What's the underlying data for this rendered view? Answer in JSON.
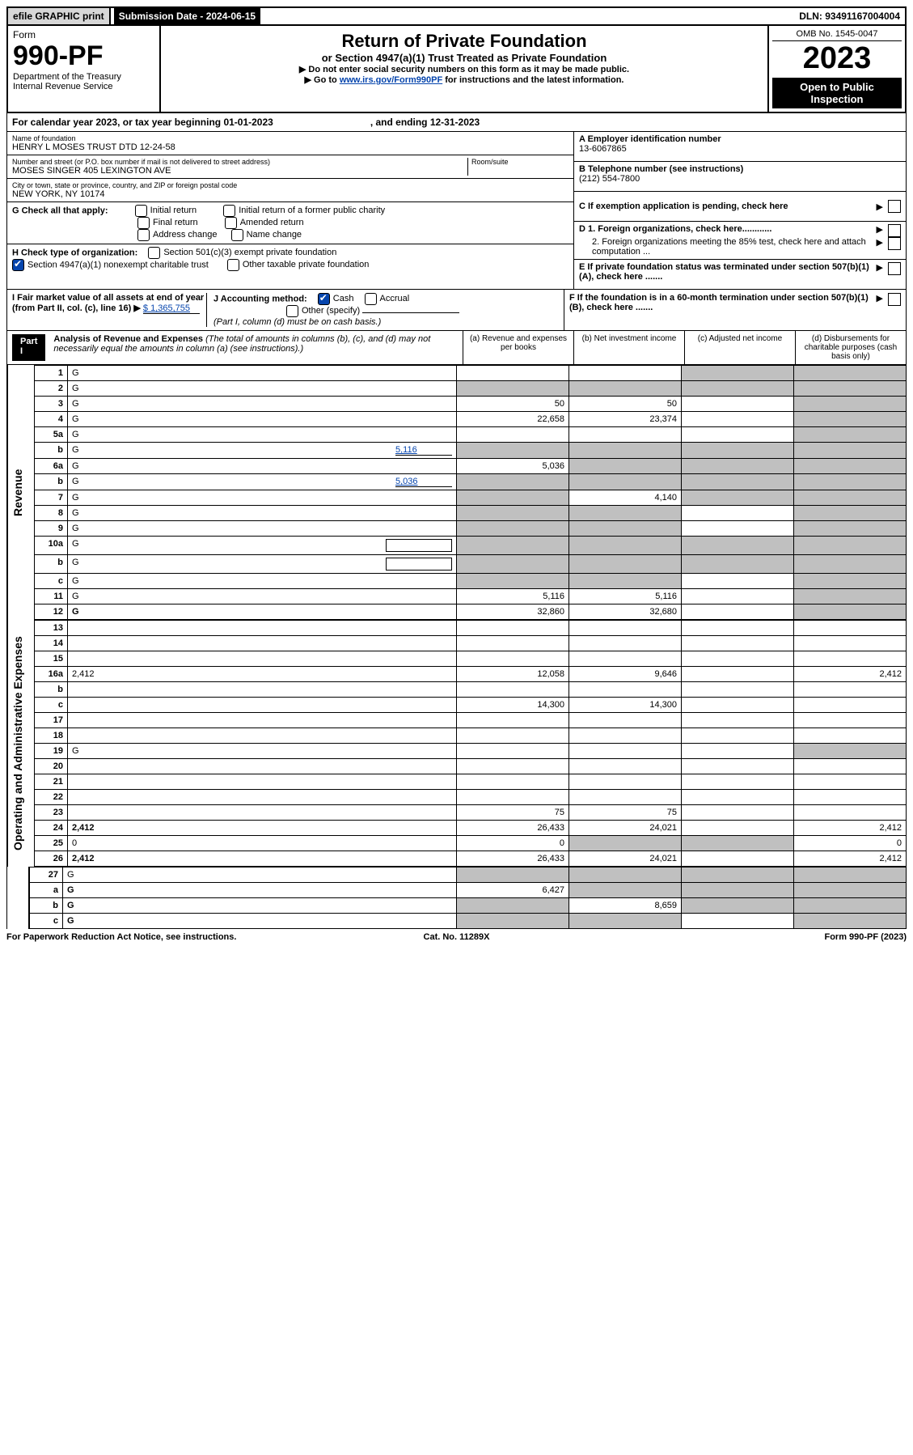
{
  "topbar": {
    "efile": "efile GRAPHIC print",
    "sub_label": "Submission Date - 2024-06-15",
    "dln": "DLN: 93491167004004"
  },
  "header": {
    "form_word": "Form",
    "form_no": "990-PF",
    "dept": "Department of the Treasury\nInternal Revenue Service",
    "title": "Return of Private Foundation",
    "subtitle": "or Section 4947(a)(1) Trust Treated as Private Foundation",
    "instr1": "▶ Do not enter social security numbers on this form as it may be made public.",
    "instr2_pre": "▶ Go to ",
    "instr2_link": "www.irs.gov/Form990PF",
    "instr2_post": " for instructions and the latest information.",
    "omb": "OMB No. 1545-0047",
    "year": "2023",
    "open": "Open to Public Inspection"
  },
  "calrow": {
    "text_a": "For calendar year 2023, or tax year beginning 01-01-2023",
    "text_b": ", and ending 12-31-2023"
  },
  "info": {
    "name_label": "Name of foundation",
    "name": "HENRY L MOSES TRUST DTD 12-24-58",
    "addr_label": "Number and street (or P.O. box number if mail is not delivered to street address)",
    "addr": "MOSES SINGER 405 LEXINGTON AVE",
    "room_label": "Room/suite",
    "city_label": "City or town, state or province, country, and ZIP or foreign postal code",
    "city": "NEW YORK, NY  10174",
    "A_label": "A Employer identification number",
    "A_val": "13-6067865",
    "B_label": "B Telephone number (see instructions)",
    "B_val": "(212) 554-7800",
    "C_label": "C If exemption application is pending, check here",
    "D1": "D 1. Foreign organizations, check here............",
    "D2": "2. Foreign organizations meeting the 85% test, check here and attach computation ...",
    "E": "E  If private foundation status was terminated under section 507(b)(1)(A), check here .......",
    "F": "F  If the foundation is in a 60-month termination under section 507(b)(1)(B), check here ......."
  },
  "G": {
    "label": "G Check all that apply:",
    "opts": [
      "Initial return",
      "Final return",
      "Address change",
      "Initial return of a former public charity",
      "Amended return",
      "Name change"
    ]
  },
  "H": {
    "label": "H Check type of organization:",
    "opt1": "Section 501(c)(3) exempt private foundation",
    "opt2": "Section 4947(a)(1) nonexempt charitable trust",
    "opt3": "Other taxable private foundation"
  },
  "I": {
    "label": "I Fair market value of all assets at end of year (from Part II, col. (c), line 16) ▶",
    "val": "$  1,365,755"
  },
  "J": {
    "label": "J Accounting method:",
    "cash": "Cash",
    "accrual": "Accrual",
    "other": "Other (specify)",
    "note": "(Part I, column (d) must be on cash basis.)"
  },
  "part1": {
    "label": "Part I",
    "title": "Analysis of Revenue and Expenses",
    "title_note": "(The total of amounts in columns (b), (c), and (d) may not necessarily equal the amounts in column (a) (see instructions).)",
    "col_a": "(a)   Revenue and expenses per books",
    "col_b": "(b)   Net investment income",
    "col_c": "(c)   Adjusted net income",
    "col_d": "(d)   Disbursements for charitable purposes (cash basis only)"
  },
  "sections": [
    {
      "side": "Revenue",
      "rows": [
        {
          "n": "1",
          "d": "G",
          "a": "",
          "b": "",
          "c": "G"
        },
        {
          "n": "2",
          "d": "G",
          "a": "G",
          "b": "G",
          "c": "G"
        },
        {
          "n": "3",
          "d": "G",
          "a": "50",
          "b": "50",
          "c": ""
        },
        {
          "n": "4",
          "d": "G",
          "a": "22,658",
          "b": "23,374",
          "c": ""
        },
        {
          "n": "5a",
          "d": "G",
          "a": "",
          "b": "",
          "c": ""
        },
        {
          "n": "b",
          "d": "G",
          "inline": "5,116",
          "a": "G",
          "b": "G",
          "c": "G"
        },
        {
          "n": "6a",
          "d": "G",
          "a": "5,036",
          "b": "G",
          "c": "G"
        },
        {
          "n": "b",
          "d": "G",
          "inline": "5,036",
          "a": "G",
          "b": "G",
          "c": "G"
        },
        {
          "n": "7",
          "d": "G",
          "a": "G",
          "b": "4,140",
          "c": "G"
        },
        {
          "n": "8",
          "d": "G",
          "a": "G",
          "b": "G",
          "c": ""
        },
        {
          "n": "9",
          "d": "G",
          "a": "G",
          "b": "G",
          "c": ""
        },
        {
          "n": "10a",
          "d": "G",
          "half": true,
          "a": "G",
          "b": "G",
          "c": "G"
        },
        {
          "n": "b",
          "d": "G",
          "half": true,
          "a": "G",
          "b": "G",
          "c": "G"
        },
        {
          "n": "c",
          "d": "G",
          "a": "G",
          "b": "G",
          "c": ""
        },
        {
          "n": "11",
          "d": "G",
          "a": "5,116",
          "b": "5,116",
          "c": ""
        },
        {
          "n": "12",
          "d": "G",
          "bold": true,
          "a": "32,860",
          "b": "32,680",
          "c": ""
        }
      ]
    },
    {
      "side": "Operating and Administrative Expenses",
      "rows": [
        {
          "n": "13",
          "d": "",
          "a": "",
          "b": "",
          "c": ""
        },
        {
          "n": "14",
          "d": "",
          "a": "",
          "b": "",
          "c": ""
        },
        {
          "n": "15",
          "d": "",
          "a": "",
          "b": "",
          "c": ""
        },
        {
          "n": "16a",
          "d": "2,412",
          "a": "12,058",
          "b": "9,646",
          "c": ""
        },
        {
          "n": "b",
          "d": "",
          "a": "",
          "b": "",
          "c": ""
        },
        {
          "n": "c",
          "d": "",
          "a": "14,300",
          "b": "14,300",
          "c": ""
        },
        {
          "n": "17",
          "d": "",
          "a": "",
          "b": "",
          "c": ""
        },
        {
          "n": "18",
          "d": "",
          "a": "",
          "b": "",
          "c": ""
        },
        {
          "n": "19",
          "d": "G",
          "a": "",
          "b": "",
          "c": ""
        },
        {
          "n": "20",
          "d": "",
          "a": "",
          "b": "",
          "c": ""
        },
        {
          "n": "21",
          "d": "",
          "a": "",
          "b": "",
          "c": ""
        },
        {
          "n": "22",
          "d": "",
          "a": "",
          "b": "",
          "c": ""
        },
        {
          "n": "23",
          "d": "",
          "a": "75",
          "b": "75",
          "c": ""
        },
        {
          "n": "24",
          "d": "2,412",
          "bold": true,
          "a": "26,433",
          "b": "24,021",
          "c": ""
        },
        {
          "n": "25",
          "d": "0",
          "a": "0",
          "b": "G",
          "c": "G"
        },
        {
          "n": "26",
          "d": "2,412",
          "bold": true,
          "a": "26,433",
          "b": "24,021",
          "c": ""
        }
      ]
    },
    {
      "side": "",
      "rows": [
        {
          "n": "27",
          "d": "G",
          "a": "G",
          "b": "G",
          "c": "G"
        },
        {
          "n": "a",
          "d": "G",
          "bold": true,
          "a": "6,427",
          "b": "G",
          "c": "G"
        },
        {
          "n": "b",
          "d": "G",
          "bold": true,
          "a": "G",
          "b": "8,659",
          "c": "G"
        },
        {
          "n": "c",
          "d": "G",
          "bold": true,
          "a": "G",
          "b": "G",
          "c": ""
        }
      ]
    }
  ],
  "footer": {
    "left": "For Paperwork Reduction Act Notice, see instructions.",
    "mid": "Cat. No. 11289X",
    "right": "Form 990-PF (2023)"
  }
}
